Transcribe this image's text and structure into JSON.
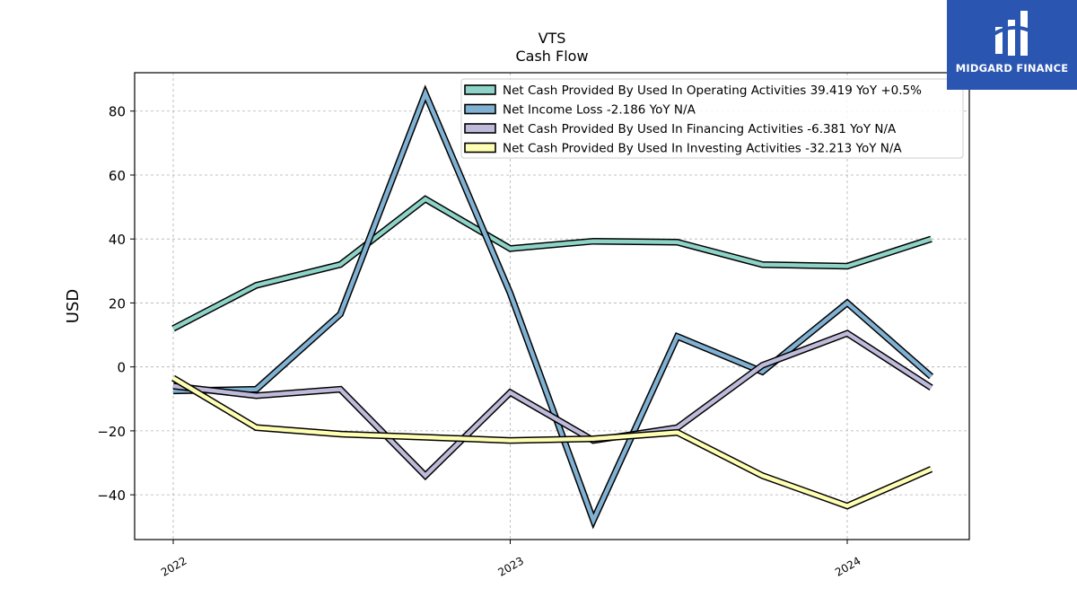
{
  "chart_data": {
    "type": "line",
    "title": "VTS",
    "subtitle": "Cash Flow",
    "xlabel": "",
    "ylabel": "USD",
    "x_ticks": [
      "2022",
      "2023",
      "2024"
    ],
    "y_ticks": [
      "80",
      "60",
      "40",
      "20",
      "0",
      "−20",
      "−40"
    ],
    "ylim": [
      -54,
      92
    ],
    "grid": true,
    "legend_position": "top-right",
    "x": [
      "2022-01-01",
      "2022-04-01",
      "2022-07-01",
      "2022-10-01",
      "2023-01-01",
      "2023-04-01",
      "2023-07-01",
      "2023-10-01",
      "2024-01-01",
      "2024-04-01"
    ],
    "series": [
      {
        "name": "Net Cash Provided By Used In Operating Activities",
        "legend_label": "Net Cash Provided By Used In Operating Activities  39.419 YoY +0.5%",
        "color": "#8dd3c7",
        "values": [
          12,
          25.5,
          32,
          52.5,
          37,
          39.3,
          39,
          32,
          31.5,
          40
        ]
      },
      {
        "name": "Net Income Loss",
        "legend_label": "Net Income Loss  -2.186 YoY N/A",
        "color": "#80b1d3",
        "values": [
          -7.5,
          -7,
          16.5,
          85.5,
          23,
          -48,
          9.5,
          -1.5,
          20,
          -3
        ]
      },
      {
        "name": "Net Cash Provided By Used In Financing Activities",
        "legend_label": "Net Cash Provided By Used In Financing Activities  -6.381 YoY N/A",
        "color": "#bebada",
        "values": [
          -6,
          -9,
          -7,
          -34,
          -8,
          -23,
          -19,
          0.5,
          10.5,
          -6.5
        ]
      },
      {
        "name": "Net Cash Provided By Used In Investing Activities",
        "legend_label": "Net Cash Provided By Used In Investing Activities  -32.213 YoY N/A",
        "color": "#ffffb3",
        "values": [
          -3.5,
          -19,
          -21,
          -22,
          -23,
          -22.5,
          -20.5,
          -34,
          -43.5,
          -32
        ]
      }
    ]
  },
  "logo": {
    "text": "MIDGARD FINANCE",
    "background": "#2a55b0"
  }
}
